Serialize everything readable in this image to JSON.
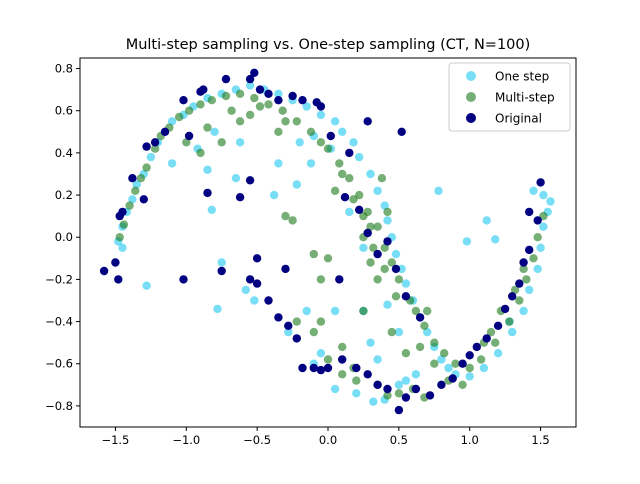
{
  "chart_data": {
    "type": "scatter",
    "title": "Multi-step sampling vs. One-step sampling (CT, N=100)",
    "xlabel": "",
    "ylabel": "",
    "xlim": [
      -1.75,
      1.75
    ],
    "ylim": [
      -0.9,
      0.85
    ],
    "xticks": [
      -1.5,
      -1.0,
      -0.5,
      0.0,
      0.5,
      1.0,
      1.5
    ],
    "xtick_labels": [
      "−1.5",
      "−1.0",
      "−0.5",
      "0.0",
      "0.5",
      "1.0",
      "1.5"
    ],
    "yticks": [
      -0.8,
      -0.6,
      -0.4,
      -0.2,
      0.0,
      0.2,
      0.4,
      0.6,
      0.8
    ],
    "ytick_labels": [
      "−0.8",
      "−0.6",
      "−0.4",
      "−0.2",
      "0.0",
      "0.2",
      "0.4",
      "0.6",
      "0.8"
    ],
    "grid": false,
    "legend_position": "top-right",
    "series": [
      {
        "name": "One step",
        "color": "#1ec8f0",
        "alpha": 0.6,
        "points": [
          [
            -1.48,
            -0.02
          ],
          [
            -1.45,
            0.05
          ],
          [
            -1.42,
            0.12
          ],
          [
            -1.38,
            0.18
          ],
          [
            -1.35,
            0.25
          ],
          [
            -1.3,
            0.3
          ],
          [
            -1.25,
            0.38
          ],
          [
            -1.2,
            0.45
          ],
          [
            -1.15,
            0.5
          ],
          [
            -1.1,
            0.55
          ],
          [
            -1.02,
            0.58
          ],
          [
            -0.95,
            0.62
          ],
          [
            -0.85,
            0.66
          ],
          [
            -0.75,
            0.68
          ],
          [
            -0.65,
            0.7
          ],
          [
            -0.55,
            0.72
          ],
          [
            -0.45,
            0.7
          ],
          [
            -0.35,
            0.68
          ],
          [
            -0.25,
            0.65
          ],
          [
            -0.15,
            0.62
          ],
          [
            -0.05,
            0.58
          ],
          [
            0.05,
            0.55
          ],
          [
            0.1,
            0.5
          ],
          [
            0.18,
            0.45
          ],
          [
            0.22,
            0.38
          ],
          [
            0.3,
            0.3
          ],
          [
            0.35,
            0.22
          ],
          [
            0.4,
            0.15
          ],
          [
            0.42,
            0.08
          ],
          [
            0.45,
            0.0
          ],
          [
            0.48,
            -0.08
          ],
          [
            0.52,
            -0.15
          ],
          [
            0.55,
            -0.22
          ],
          [
            0.6,
            -0.3
          ],
          [
            0.65,
            -0.38
          ],
          [
            0.7,
            -0.45
          ],
          [
            0.75,
            -0.52
          ],
          [
            0.8,
            -0.58
          ],
          [
            0.85,
            -0.62
          ],
          [
            0.9,
            -0.65
          ],
          [
            1.0,
            -0.66
          ],
          [
            1.1,
            -0.62
          ],
          [
            1.2,
            -0.55
          ],
          [
            1.3,
            -0.45
          ],
          [
            1.38,
            -0.35
          ],
          [
            1.42,
            -0.25
          ],
          [
            1.48,
            -0.15
          ],
          [
            1.5,
            -0.05
          ],
          [
            1.52,
            0.05
          ],
          [
            1.55,
            0.12
          ],
          [
            1.57,
            0.17
          ],
          [
            -1.28,
            -0.23
          ],
          [
            -0.78,
            -0.34
          ],
          [
            -0.82,
            0.13
          ],
          [
            -0.75,
            -0.12
          ],
          [
            -0.58,
            -0.25
          ],
          [
            -0.52,
            -0.3
          ],
          [
            -0.65,
            0.28
          ],
          [
            -0.62,
            0.45
          ],
          [
            -0.92,
            0.42
          ],
          [
            -0.8,
            0.5
          ],
          [
            -0.35,
            0.35
          ],
          [
            -0.2,
            0.45
          ],
          [
            -0.1,
            0.48
          ],
          [
            0.15,
            0.12
          ],
          [
            0.25,
            -0.05
          ],
          [
            0.3,
            -0.5
          ],
          [
            0.35,
            -0.58
          ],
          [
            0.55,
            -0.68
          ],
          [
            0.78,
            0.22
          ],
          [
            0.98,
            -0.02
          ],
          [
            1.12,
            0.08
          ],
          [
            1.18,
            -0.01
          ],
          [
            0.05,
            -0.35
          ],
          [
            -0.05,
            -0.55
          ],
          [
            -0.1,
            -0.6
          ],
          [
            0.05,
            -0.72
          ],
          [
            0.2,
            -0.74
          ],
          [
            0.32,
            -0.78
          ],
          [
            0.4,
            -0.77
          ],
          [
            0.5,
            -0.7
          ],
          [
            0.62,
            -0.65
          ],
          [
            -0.38,
            0.2
          ],
          [
            -0.22,
            0.25
          ],
          [
            -0.12,
            0.35
          ],
          [
            0.02,
            0.42
          ],
          [
            -0.28,
            -0.45
          ],
          [
            -0.15,
            -0.35
          ],
          [
            0.25,
            -0.35
          ],
          [
            0.42,
            -0.32
          ],
          [
            0.5,
            -0.45
          ],
          [
            1.28,
            -0.4
          ],
          [
            1.45,
            0.22
          ],
          [
            1.52,
            0.2
          ],
          [
            -1.45,
            -0.05
          ],
          [
            -1.1,
            0.35
          ],
          [
            -0.85,
            0.32
          ]
        ]
      },
      {
        "name": "Multi-step",
        "color": "#1a7a1a",
        "alpha": 0.6,
        "points": [
          [
            -1.47,
            0.0
          ],
          [
            -1.44,
            0.06
          ],
          [
            -1.4,
            0.15
          ],
          [
            -1.36,
            0.22
          ],
          [
            -1.32,
            0.28
          ],
          [
            -1.28,
            0.33
          ],
          [
            -1.22,
            0.42
          ],
          [
            -1.18,
            0.48
          ],
          [
            -1.12,
            0.52
          ],
          [
            -1.05,
            0.57
          ],
          [
            -0.98,
            0.6
          ],
          [
            -0.9,
            0.63
          ],
          [
            -0.82,
            0.65
          ],
          [
            -0.72,
            0.67
          ],
          [
            -0.62,
            0.68
          ],
          [
            -0.52,
            0.66
          ],
          [
            -0.42,
            0.63
          ],
          [
            -0.32,
            0.6
          ],
          [
            -0.22,
            0.55
          ],
          [
            -0.12,
            0.5
          ],
          [
            0.0,
            0.42
          ],
          [
            0.08,
            0.35
          ],
          [
            0.15,
            0.28
          ],
          [
            0.22,
            0.2
          ],
          [
            0.28,
            0.12
          ],
          [
            0.35,
            0.05
          ],
          [
            0.4,
            -0.05
          ],
          [
            0.45,
            -0.12
          ],
          [
            0.5,
            -0.2
          ],
          [
            0.55,
            -0.28
          ],
          [
            0.62,
            -0.35
          ],
          [
            0.68,
            -0.42
          ],
          [
            0.75,
            -0.5
          ],
          [
            0.82,
            -0.55
          ],
          [
            0.9,
            -0.6
          ],
          [
            1.0,
            -0.62
          ],
          [
            1.08,
            -0.58
          ],
          [
            1.18,
            -0.5
          ],
          [
            1.28,
            -0.4
          ],
          [
            1.35,
            -0.3
          ],
          [
            1.4,
            -0.2
          ],
          [
            1.45,
            -0.1
          ],
          [
            1.48,
            0.0
          ],
          [
            1.52,
            0.1
          ],
          [
            -1.0,
            0.45
          ],
          [
            -0.9,
            0.4
          ],
          [
            -0.75,
            0.45
          ],
          [
            -0.62,
            0.55
          ],
          [
            -0.55,
            0.58
          ],
          [
            -0.3,
            0.55
          ],
          [
            -0.05,
            0.45
          ],
          [
            0.1,
            0.3
          ],
          [
            0.25,
            0.0
          ],
          [
            0.3,
            -0.12
          ],
          [
            0.35,
            -0.2
          ],
          [
            0.25,
            -0.35
          ],
          [
            0.45,
            -0.45
          ],
          [
            0.55,
            -0.55
          ],
          [
            0.65,
            -0.52
          ],
          [
            0.75,
            -0.6
          ],
          [
            0.85,
            -0.68
          ],
          [
            0.95,
            -0.7
          ],
          [
            0.35,
            -0.7
          ],
          [
            0.42,
            -0.75
          ],
          [
            0.5,
            -0.74
          ],
          [
            0.6,
            -0.72
          ],
          [
            0.68,
            -0.76
          ],
          [
            0.2,
            -0.68
          ],
          [
            0.1,
            -0.65
          ],
          [
            0.0,
            -0.58
          ],
          [
            -0.1,
            -0.45
          ],
          [
            -0.05,
            -0.4
          ],
          [
            0.1,
            -0.52
          ],
          [
            0.18,
            -0.62
          ],
          [
            -0.22,
            -0.4
          ],
          [
            -0.3,
            0.1
          ],
          [
            -0.25,
            0.08
          ],
          [
            -0.1,
            -0.08
          ],
          [
            -0.05,
            -0.2
          ],
          [
            0.0,
            -0.1
          ],
          [
            0.05,
            0.22
          ],
          [
            0.18,
            0.18
          ],
          [
            0.25,
            0.1
          ],
          [
            0.3,
            0.05
          ],
          [
            0.4,
            -0.15
          ],
          [
            0.48,
            -0.28
          ],
          [
            0.58,
            -0.3
          ],
          [
            0.7,
            -0.35
          ],
          [
            1.1,
            -0.5
          ],
          [
            1.15,
            -0.45
          ],
          [
            1.22,
            -0.35
          ],
          [
            1.32,
            -0.25
          ],
          [
            1.38,
            -0.15
          ],
          [
            -0.85,
            0.52
          ],
          [
            -0.68,
            0.6
          ],
          [
            -0.48,
            0.62
          ],
          [
            -0.35,
            0.5
          ],
          [
            0.38,
            0.28
          ],
          [
            0.42,
            0.12
          ],
          [
            0.32,
            -0.05
          ]
        ]
      },
      {
        "name": "Original",
        "color": "#000080",
        "alpha": 1.0,
        "points": [
          [
            -1.58,
            -0.16
          ],
          [
            -1.48,
            -0.2
          ],
          [
            -1.5,
            -0.12
          ],
          [
            -1.47,
            0.1
          ],
          [
            -1.45,
            0.12
          ],
          [
            -1.38,
            0.28
          ],
          [
            -1.3,
            0.18
          ],
          [
            -1.28,
            0.43
          ],
          [
            -1.22,
            0.45
          ],
          [
            -1.15,
            0.5
          ],
          [
            -1.02,
            0.65
          ],
          [
            -0.98,
            0.48
          ],
          [
            -0.9,
            0.69
          ],
          [
            -0.88,
            0.7
          ],
          [
            -0.72,
            0.75
          ],
          [
            -0.55,
            0.75
          ],
          [
            -0.52,
            0.78
          ],
          [
            -0.48,
            0.7
          ],
          [
            -0.42,
            0.68
          ],
          [
            -0.35,
            0.65
          ],
          [
            -0.25,
            0.67
          ],
          [
            -0.18,
            0.65
          ],
          [
            -0.08,
            0.64
          ],
          [
            -0.05,
            0.62
          ],
          [
            0.28,
            0.55
          ],
          [
            -1.02,
            -0.2
          ],
          [
            -0.85,
            0.21
          ],
          [
            -0.75,
            -0.16
          ],
          [
            -0.62,
            0.19
          ],
          [
            -0.55,
            0.27
          ],
          [
            -0.5,
            -0.1
          ],
          [
            -0.55,
            -0.2
          ],
          [
            -0.5,
            -0.22
          ],
          [
            -0.42,
            -0.3
          ],
          [
            -0.35,
            -0.38
          ],
          [
            -0.28,
            -0.42
          ],
          [
            -0.22,
            -0.48
          ],
          [
            -0.18,
            -0.62
          ],
          [
            -0.1,
            -0.62
          ],
          [
            -0.05,
            -0.63
          ],
          [
            0.0,
            -0.62
          ],
          [
            0.1,
            -0.58
          ],
          [
            0.2,
            -0.62
          ],
          [
            0.28,
            -0.65
          ],
          [
            0.35,
            -0.7
          ],
          [
            0.42,
            -0.72
          ],
          [
            0.5,
            -0.82
          ],
          [
            0.55,
            -0.76
          ],
          [
            0.62,
            -0.72
          ],
          [
            0.72,
            -0.75
          ],
          [
            0.8,
            -0.7
          ],
          [
            0.88,
            -0.67
          ],
          [
            0.95,
            -0.6
          ],
          [
            1.0,
            -0.56
          ],
          [
            1.05,
            -0.52
          ],
          [
            1.12,
            -0.48
          ],
          [
            1.2,
            -0.42
          ],
          [
            1.25,
            -0.34
          ],
          [
            1.3,
            -0.28
          ],
          [
            1.35,
            -0.22
          ],
          [
            1.38,
            -0.12
          ],
          [
            1.42,
            -0.06
          ],
          [
            1.48,
            0.08
          ],
          [
            1.5,
            0.26
          ],
          [
            1.42,
            0.12
          ],
          [
            0.12,
            0.19
          ],
          [
            0.22,
            0.13
          ],
          [
            0.28,
            0.02
          ],
          [
            0.35,
            -0.08
          ],
          [
            0.42,
            -0.02
          ],
          [
            0.48,
            -0.15
          ],
          [
            0.55,
            -0.28
          ],
          [
            0.65,
            -0.38
          ],
          [
            -0.3,
            -0.15
          ],
          [
            0.08,
            -0.2
          ],
          [
            0.02,
            0.48
          ],
          [
            0.15,
            0.4
          ],
          [
            0.52,
            0.5
          ]
        ]
      }
    ]
  }
}
